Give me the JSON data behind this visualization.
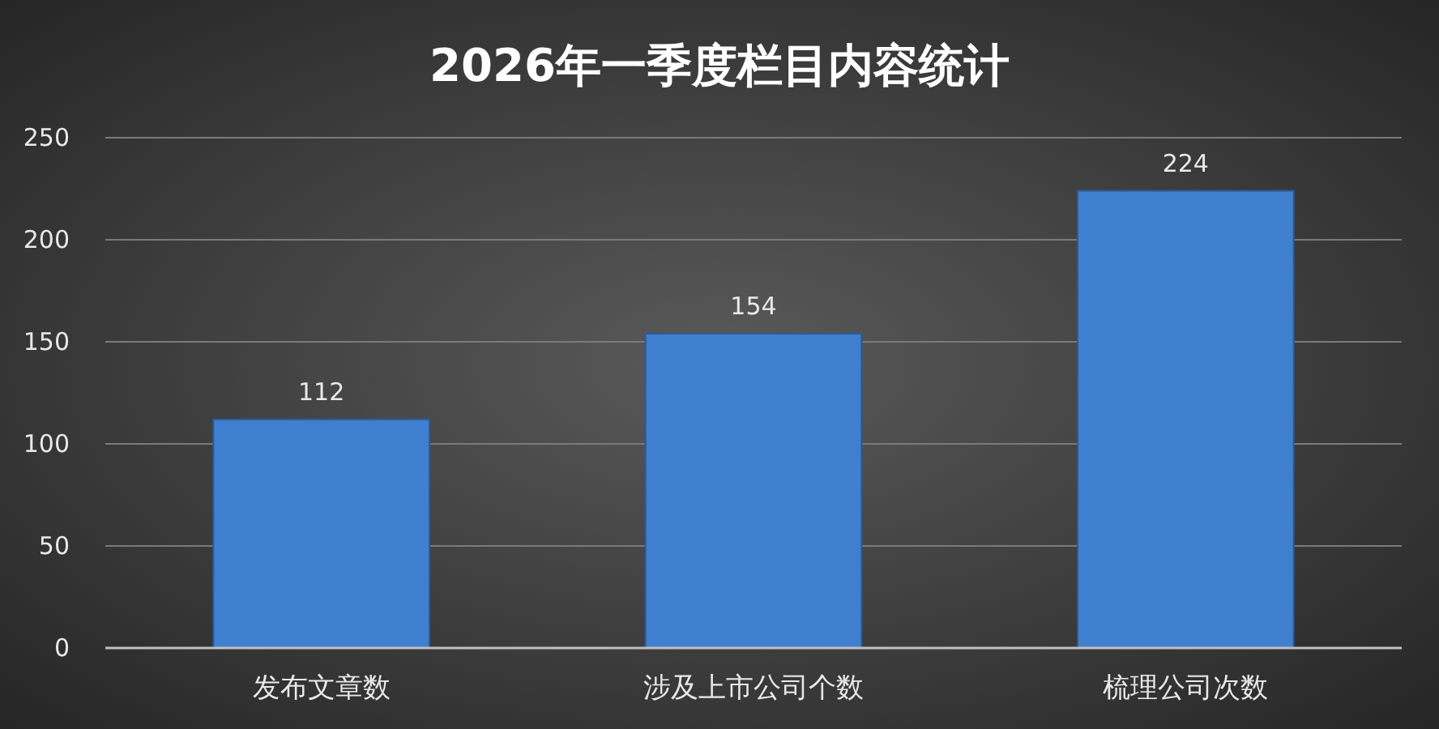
{
  "chart_data": {
    "type": "bar",
    "title": "2026年一季度栏目内容统计",
    "categories": [
      "发布文章数",
      "涉及上市公司个数",
      "梳理公司次数"
    ],
    "values": [
      112,
      154,
      224
    ],
    "color": "#3f7fd0",
    "ylim": [
      0,
      250
    ],
    "yticks": [
      0,
      50,
      100,
      150,
      200,
      250
    ],
    "grid": "y",
    "data_labels": true
  }
}
